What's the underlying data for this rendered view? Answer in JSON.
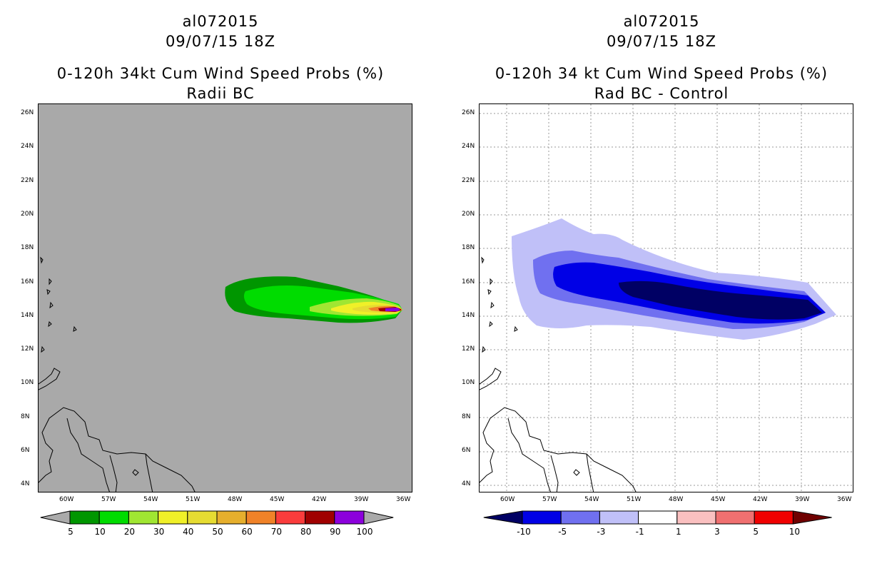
{
  "left": {
    "storm_id": "al072015",
    "date": "09/07/15 18Z",
    "product": "0-120h 34kt Cum Wind Speed Probs (%)",
    "subtitle": "Radii BC",
    "colorbar": {
      "labels": [
        "5",
        "10",
        "20",
        "30",
        "40",
        "50",
        "60",
        "70",
        "80",
        "90",
        "100"
      ],
      "colors": [
        "#009600",
        "#00dc00",
        "#a0e632",
        "#f0f028",
        "#e6dc32",
        "#e6af2d",
        "#f08228",
        "#fa3c3c",
        "#a00000",
        "#8c00dc"
      ],
      "under": "#aaaaaa",
      "over": "#aaaaaa"
    }
  },
  "right": {
    "storm_id": "al072015",
    "date": "09/07/15 18Z",
    "product": "0-120h 34 kt Cum Wind Speed Probs (%)",
    "subtitle": "Rad BC - Control",
    "colorbar": {
      "labels": [
        "-10",
        "-5",
        "-3",
        "-1",
        "1",
        "3",
        "5",
        "10"
      ],
      "colors": [
        "#0000e6",
        "#7070f0",
        "#c0c0f8",
        "#ffffff",
        "#fac0c0",
        "#f07070",
        "#f00000"
      ],
      "under": "#000064",
      "over": "#700000"
    }
  },
  "lat_labels": [
    "26N",
    "24N",
    "22N",
    "20N",
    "18N",
    "16N",
    "14N",
    "12N",
    "10N",
    "8N",
    "6N",
    "4N"
  ],
  "lon_labels": [
    "60W",
    "57W",
    "54W",
    "51W",
    "48W",
    "45W",
    "42W",
    "39W",
    "36W"
  ],
  "colors": {
    "left_background": "#a9a9a9",
    "grid": "#999999"
  }
}
